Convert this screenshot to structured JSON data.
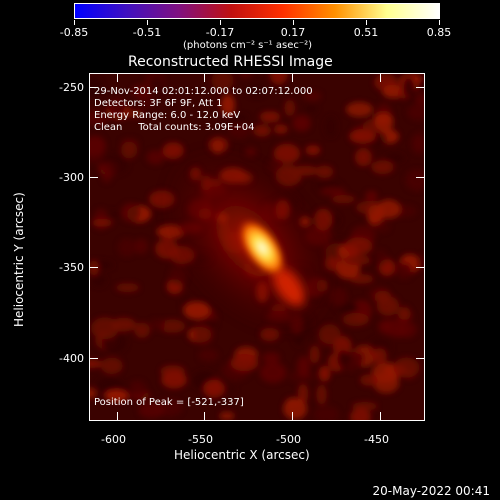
{
  "colorbar": {
    "tick_labels": [
      "-0.85",
      "-0.51",
      "-0.17",
      "0.17",
      "0.51",
      "0.85"
    ],
    "units": "(photons cm⁻² s⁻¹ asec⁻²)",
    "colormap": [
      "#0000ff",
      "#4010c0",
      "#801080",
      "#c01010",
      "#ff3000",
      "#ff9000",
      "#ffff90",
      "#ffffff"
    ]
  },
  "plot": {
    "title": "Reconstructed RHESSI Image",
    "info": {
      "time": "29-Nov-2014 02:01:12.000 to 02:07:12.000",
      "detectors": "Detectors: 3F 6F 9F, Att 1",
      "energy": "Energy Range: 6.0 - 12.0 keV",
      "clean_counts": "Clean     Total counts: 3.09E+04"
    },
    "peak": "Position of Peak = [-521,-337]",
    "x_label": "Heliocentric X (arcsec)",
    "y_label": "Heliocentric Y (arcsec)",
    "x_ticks": [
      "-600",
      "-550",
      "-500",
      "-450"
    ],
    "y_ticks": [
      "-250",
      "-300",
      "-350",
      "-400"
    ],
    "x_range": [
      -620,
      -428
    ],
    "y_range": [
      -436,
      -237
    ],
    "peak_xy": [
      -521,
      -337
    ]
  },
  "footer": {
    "date": "20-May-2022 00:41"
  }
}
